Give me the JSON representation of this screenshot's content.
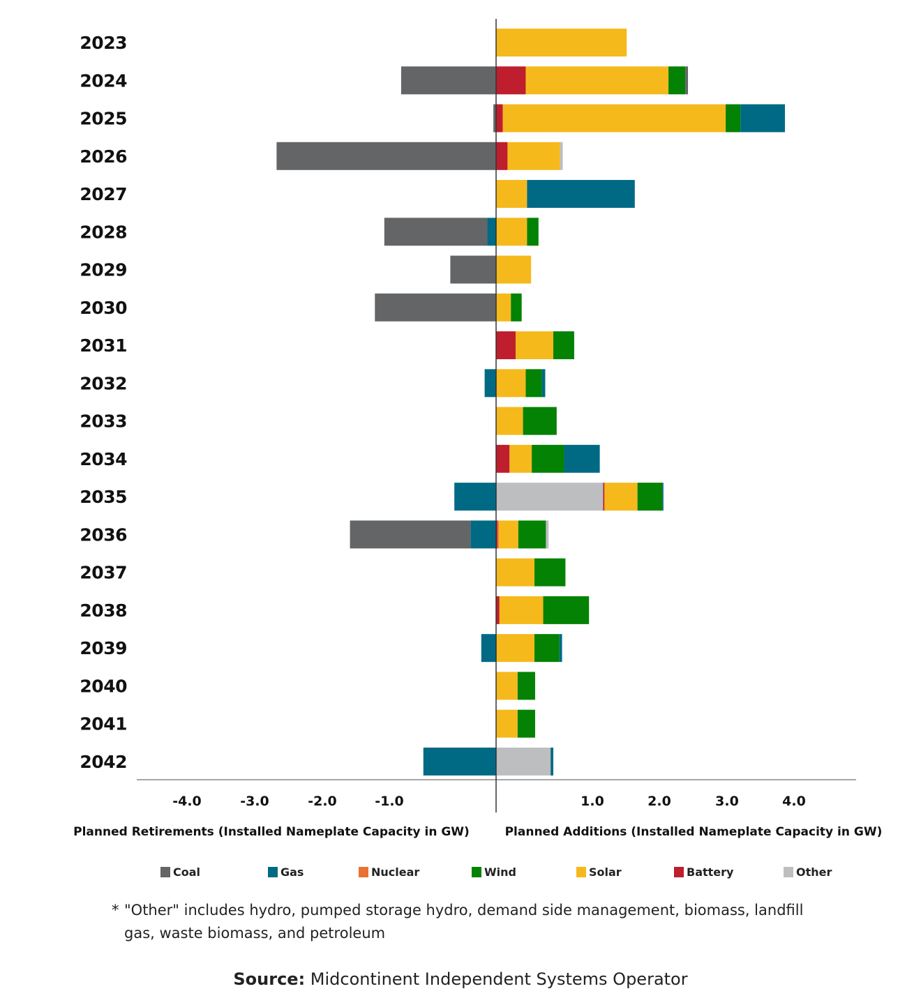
{
  "chart_data": {
    "type": "bar",
    "orientation": "horizontal",
    "stacked": true,
    "diverging": true,
    "title": "",
    "xlabel_left": "Planned Retirements (Installed Nameplate Capacity in GW)",
    "xlabel_right": "Planned Additions (Installed Nameplate Capacity in GW)",
    "ylabel": "",
    "xlim": [
      -4.2,
      5.4
    ],
    "x_tick_labels_left": [
      "-4.0",
      "-3.0",
      "-2.0",
      "-1.0"
    ],
    "x_tick_labels_right": [
      "1.0",
      "2.0",
      "3.0",
      "4.0"
    ],
    "grid": false,
    "legend_position": "bottom",
    "categories": [
      "2023",
      "2024",
      "2025",
      "2026",
      "2027",
      "2028",
      "2029",
      "2030",
      "2031",
      "2032",
      "2033",
      "2034",
      "2035",
      "2036",
      "2037",
      "2038",
      "2039",
      "2040",
      "2041",
      "2042"
    ],
    "series_order_negative": [
      "Gas",
      "Coal"
    ],
    "series_order_positive": [
      "Other",
      "Battery",
      "Nuclear",
      "Solar",
      "Wind",
      "Gas",
      "OtherEnd"
    ],
    "series": [
      {
        "name": "Coal",
        "color": "#646567",
        "retirements": [
          0,
          -1.41,
          -0.04,
          -3.26,
          0,
          -1.53,
          -0.68,
          -1.8,
          0,
          0,
          0,
          0,
          0,
          -1.79,
          0,
          0,
          0,
          0,
          0,
          0
        ],
        "additions": [
          0,
          0,
          0,
          0,
          0,
          0,
          0,
          0,
          0,
          0,
          0,
          0,
          0,
          0,
          0,
          0,
          0,
          0,
          0,
          0
        ]
      },
      {
        "name": "Gas",
        "color": "#006A85",
        "retirements": [
          0,
          0,
          0,
          0,
          0,
          -0.13,
          0,
          0,
          0,
          -0.17,
          0,
          0,
          -0.62,
          -0.38,
          0,
          0,
          -0.22,
          0,
          0,
          -1.08
        ],
        "additions": [
          0,
          0,
          0.66,
          0,
          1.6,
          0,
          0,
          0,
          0,
          0.05,
          0,
          0.53,
          0.01,
          0,
          0,
          0,
          0.04,
          0,
          0,
          0.04
        ]
      },
      {
        "name": "Nuclear",
        "color": "#E97132",
        "retirements": [
          0,
          0,
          0,
          0,
          0,
          0,
          0,
          0,
          0,
          0,
          0,
          0,
          0,
          0,
          0,
          0,
          0,
          0,
          0,
          0
        ],
        "additions": [
          0,
          0,
          0,
          0,
          0,
          0,
          0,
          0,
          0,
          0,
          0,
          0,
          0,
          0.02,
          0,
          0,
          0,
          0,
          0,
          0
        ]
      },
      {
        "name": "Wind",
        "color": "#038203",
        "retirements": [
          0,
          0,
          0,
          0,
          0,
          0,
          0,
          0,
          0,
          0,
          0,
          0,
          0,
          0,
          0,
          0,
          0,
          0,
          0,
          0
        ],
        "additions": [
          0,
          0.25,
          0.22,
          0,
          0,
          0.17,
          0,
          0.16,
          0.31,
          0.24,
          0.5,
          0.48,
          0.37,
          0.41,
          0.46,
          0.68,
          0.37,
          0.26,
          0.26,
          0
        ]
      },
      {
        "name": "Solar",
        "color": "#F5B91C",
        "retirements": [
          0,
          0,
          0,
          0,
          0,
          0,
          0,
          0,
          0,
          0,
          0,
          0,
          0,
          0,
          0,
          0,
          0,
          0,
          0,
          0
        ],
        "additions": [
          1.94,
          2.12,
          3.31,
          0.78,
          0.46,
          0.46,
          0.52,
          0.22,
          0.56,
          0.44,
          0.4,
          0.33,
          0.49,
          0.29,
          0.57,
          0.65,
          0.57,
          0.32,
          0.32,
          0
        ]
      },
      {
        "name": "Battery",
        "color": "#BE1E2D",
        "retirements": [
          0,
          0,
          0,
          0,
          0,
          0,
          0,
          0,
          0,
          0,
          0,
          0,
          0,
          0,
          0,
          0,
          0,
          0,
          0,
          0
        ],
        "additions": [
          0,
          0.44,
          0.1,
          0.17,
          0,
          0,
          0,
          0,
          0.29,
          0,
          0,
          0.2,
          0.02,
          0.02,
          0,
          0.05,
          0,
          0,
          0,
          0
        ]
      },
      {
        "name": "Other",
        "color": "#BDBEC0",
        "retirements": [
          0,
          0,
          0,
          0,
          0,
          0,
          0,
          0,
          0,
          0,
          0,
          0,
          0,
          0,
          0,
          0,
          0,
          0,
          0,
          0
        ],
        "additions_leading": [
          0,
          0,
          0,
          0,
          0,
          0,
          0,
          0,
          0,
          0,
          0,
          0,
          1.59,
          0,
          0,
          0,
          0,
          0,
          0,
          0.81
        ],
        "additions_trailing": [
          0,
          0.04,
          0,
          0.04,
          0,
          0,
          0,
          0,
          0,
          0,
          0,
          0,
          0,
          0.04,
          0,
          0,
          0,
          0,
          0,
          0
        ]
      }
    ]
  },
  "legend": [
    {
      "label": "Coal",
      "color": "#646567"
    },
    {
      "label": "Gas",
      "color": "#006A85"
    },
    {
      "label": "Nuclear",
      "color": "#E97132"
    },
    {
      "label": "Wind",
      "color": "#038203"
    },
    {
      "label": "Solar",
      "color": "#F5B91C"
    },
    {
      "label": "Battery",
      "color": "#BE1E2D"
    },
    {
      "label": "Other",
      "color": "#BDBEC0"
    }
  ],
  "footnote": {
    "star": "*",
    "line1": "\"Other\" includes hydro, pumped storage hydro, demand side management, biomass, landfill",
    "line2": "gas, waste biomass, and petroleum"
  },
  "source": {
    "label": "Source:",
    "text": " Midcontinent Independent Systems Operator"
  }
}
